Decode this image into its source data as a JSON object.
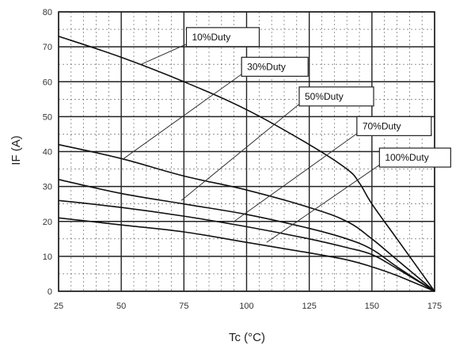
{
  "chart_data": {
    "type": "line",
    "title": "",
    "xlabel": "Tc (°C)",
    "ylabel": "IF (A)",
    "xlim": [
      25,
      175
    ],
    "ylim": [
      0,
      80
    ],
    "x_ticks": [
      "25",
      "50",
      "75",
      "100",
      "125",
      "150",
      "175"
    ],
    "y_ticks": [
      "0",
      "10",
      "20",
      "30",
      "40",
      "50",
      "60",
      "70",
      "80"
    ],
    "grid": true,
    "line_color": "#111111",
    "series": [
      {
        "name": "10%Duty",
        "points": [
          [
            25,
            73
          ],
          [
            50,
            67
          ],
          [
            75,
            60
          ],
          [
            100,
            52
          ],
          [
            125,
            42
          ],
          [
            140,
            35
          ],
          [
            145,
            31
          ],
          [
            150,
            25
          ],
          [
            160,
            15
          ],
          [
            175,
            0
          ]
        ]
      },
      {
        "name": "30%Duty",
        "points": [
          [
            25,
            42
          ],
          [
            50,
            38
          ],
          [
            75,
            33
          ],
          [
            100,
            29
          ],
          [
            125,
            24
          ],
          [
            140,
            20
          ],
          [
            150,
            15
          ],
          [
            160,
            9
          ],
          [
            175,
            0
          ]
        ]
      },
      {
        "name": "50%Duty",
        "points": [
          [
            25,
            32
          ],
          [
            50,
            28
          ],
          [
            75,
            25
          ],
          [
            100,
            22
          ],
          [
            125,
            18
          ],
          [
            140,
            15
          ],
          [
            150,
            12
          ],
          [
            160,
            7
          ],
          [
            175,
            0
          ]
        ]
      },
      {
        "name": "70%Duty",
        "points": [
          [
            25,
            26
          ],
          [
            50,
            24
          ],
          [
            75,
            21.5
          ],
          [
            100,
            18.5
          ],
          [
            125,
            15
          ],
          [
            140,
            12.5
          ],
          [
            150,
            10.5
          ],
          [
            160,
            6.5
          ],
          [
            175,
            0
          ]
        ]
      },
      {
        "name": "100%Duty",
        "points": [
          [
            25,
            21
          ],
          [
            50,
            19
          ],
          [
            75,
            17
          ],
          [
            100,
            14
          ],
          [
            125,
            11
          ],
          [
            140,
            9
          ],
          [
            150,
            7
          ],
          [
            160,
            4.5
          ],
          [
            175,
            0
          ]
        ]
      }
    ]
  }
}
